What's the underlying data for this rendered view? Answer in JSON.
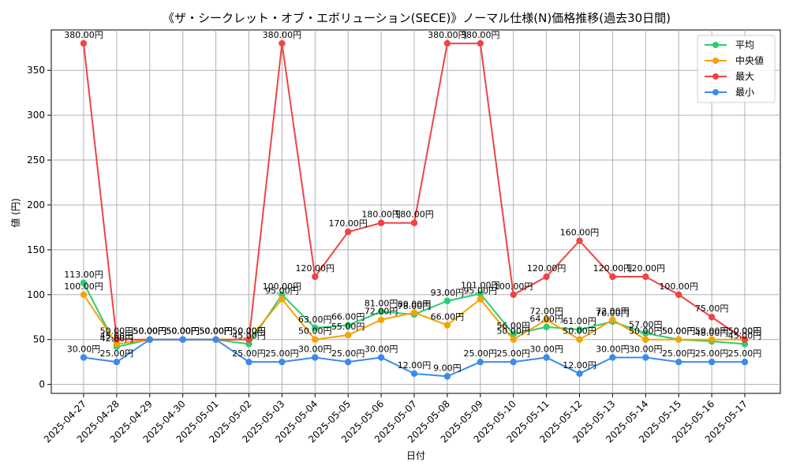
{
  "chart_data": {
    "type": "line",
    "title": "《ザ・シークレット・オブ・エボリューション(SECE)》ノーマル仕様(N)価格推移(過去30日間)",
    "xlabel": "日付",
    "ylabel": "値 (円)",
    "ylim": [
      -10,
      395
    ],
    "yticks": [
      0,
      50,
      100,
      150,
      200,
      250,
      300,
      350
    ],
    "grid": true,
    "legend_position": "top-right",
    "categories": [
      "2025-04-27",
      "2025-04-28",
      "2025-04-29",
      "2025-04-30",
      "2025-05-01",
      "2025-05-02",
      "2025-05-03",
      "2025-05-04",
      "2025-05-05",
      "2025-05-06",
      "2025-05-07",
      "2025-05-08",
      "2025-05-09",
      "2025-05-10",
      "2025-05-11",
      "2025-05-12",
      "2025-05-13",
      "2025-05-14",
      "2025-05-15",
      "2025-05-16",
      "2025-05-17"
    ],
    "series": [
      {
        "name": "平均",
        "color": "#2ecc71",
        "values": [
          113,
          42,
          50,
          50,
          50,
          45,
          100,
          63,
          66,
          81,
          78,
          93,
          101,
          56,
          64,
          61,
          70,
          57,
          50,
          48,
          45
        ],
        "labels": [
          "113.00円",
          "42.00円",
          "50.00円",
          "50.00円",
          "50.00円",
          "45.00円",
          "100.00円",
          "63.00円",
          "66.00円",
          "81.00円",
          "78.00円",
          "93.00円",
          "101.00円",
          "56.00円",
          "64.00円",
          "61.00円",
          "70.00円",
          "57.00円",
          "50.00円",
          "48.00円",
          "45.00円"
        ]
      },
      {
        "name": "中央値",
        "color": "#f5a300",
        "values": [
          100,
          45,
          50,
          50,
          50,
          50,
          95,
          50,
          55,
          72,
          80,
          66,
          95,
          50,
          72,
          50,
          72,
          50,
          50,
          50,
          50
        ],
        "labels": [
          "100.00円",
          "45.00円",
          "50.00円",
          "50.00円",
          "50.00円",
          "50.00円",
          "95.00円",
          "50.00円",
          "55.00円",
          "72.00円",
          "80.00円",
          "66.00円",
          "95.00円",
          "50.00円",
          "72.00円",
          "50.00円",
          "72.00円",
          "50.00円",
          "50.00円",
          "50.00円",
          "50.00円"
        ]
      },
      {
        "name": "最大",
        "color": "#ef4444",
        "values": [
          380,
          50,
          50,
          50,
          50,
          50,
          380,
          120,
          170,
          180,
          180,
          380,
          380,
          100,
          120,
          160,
          120,
          120,
          100,
          75,
          50
        ],
        "labels": [
          "380.00円",
          "50.00円",
          "50.00円",
          "50.00円",
          "50.00円",
          "50.00円",
          "380.00円",
          "120.00円",
          "170.00円",
          "180.00円",
          "180.00円",
          "380.00円",
          "380.00円",
          "100.00円",
          "120.00円",
          "160.00円",
          "120.00円",
          "120.00円",
          "100.00円",
          "75.00円",
          "50.00円"
        ]
      },
      {
        "name": "最小",
        "color": "#3b8beb",
        "values": [
          30,
          25,
          50,
          50,
          50,
          25,
          25,
          30,
          25,
          30,
          12,
          9,
          25,
          25,
          30,
          12,
          30,
          30,
          25,
          25,
          25
        ],
        "labels": [
          "30.00円",
          "25.00円",
          "50.00円",
          "50.00円",
          "50.00円",
          "25.00円",
          "25.00円",
          "30.00円",
          "25.00円",
          "30.00円",
          "12.00円",
          "9.00円",
          "25.00円",
          "25.00円",
          "30.00円",
          "12.00円",
          "30.00円",
          "30.00円",
          "25.00円",
          "25.00円",
          "25.00円"
        ]
      }
    ]
  }
}
